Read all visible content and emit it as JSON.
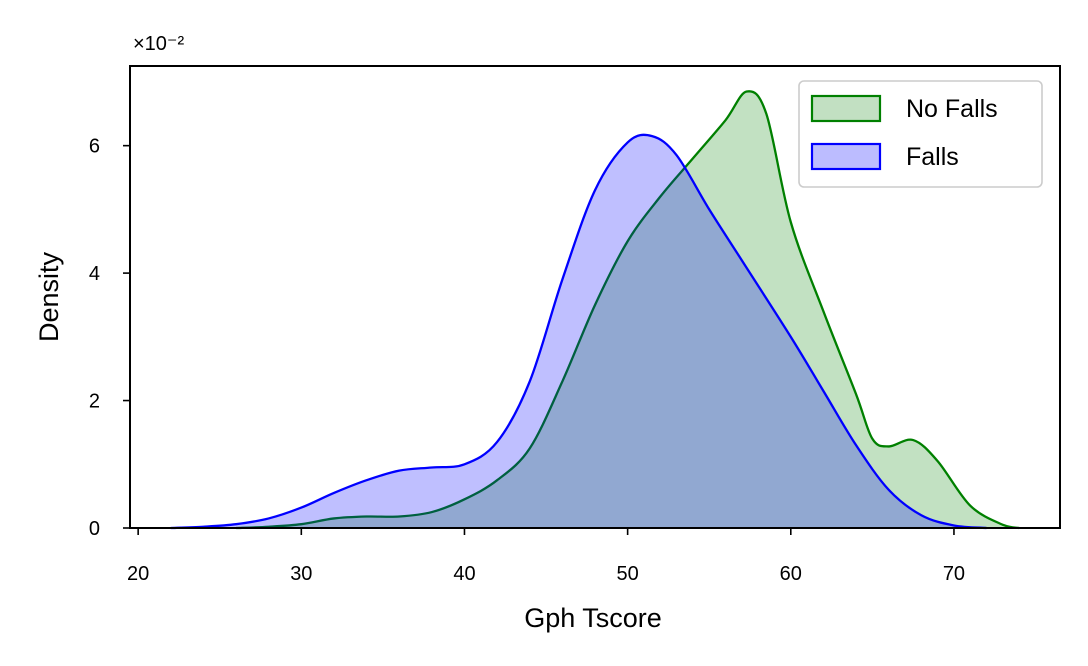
{
  "chart_data": {
    "type": "area",
    "title": "",
    "xlabel": "Gph Tscore",
    "ylabel": "Density",
    "y_offset_label": "×10⁻²",
    "xlim": [
      19.5,
      76.5
    ],
    "ylim": [
      0,
      7.25
    ],
    "xticks": [
      20,
      30,
      40,
      50,
      60,
      70
    ],
    "yticks": [
      0,
      2,
      4,
      6
    ],
    "grid": false,
    "legend_position": "top-right",
    "series": [
      {
        "name": "No Falls",
        "color": "#008000",
        "fill": "#c2e0c2",
        "x": [
          26,
          28,
          30,
          32,
          34,
          36,
          38,
          40,
          42,
          44,
          46,
          48,
          50,
          52,
          54,
          56,
          57.3,
          58.5,
          60,
          62,
          64,
          65,
          66,
          67.5,
          69,
          71,
          73,
          74
        ],
        "y": [
          0,
          0.02,
          0.06,
          0.15,
          0.18,
          0.18,
          0.25,
          0.45,
          0.75,
          1.25,
          2.3,
          3.5,
          4.5,
          5.2,
          5.8,
          6.4,
          6.85,
          6.5,
          4.8,
          3.4,
          2.1,
          1.4,
          1.28,
          1.38,
          1.05,
          0.35,
          0.05,
          0
        ]
      },
      {
        "name": "Falls",
        "color": "#0000ff",
        "fill": "#bcbcff",
        "x": [
          22,
          24,
          26,
          28,
          30,
          32,
          34,
          36,
          38,
          40,
          42,
          44,
          46,
          48,
          50,
          51.5,
          53,
          55,
          57,
          60,
          62,
          64,
          66,
          68,
          70,
          72
        ],
        "y": [
          0,
          0.02,
          0.06,
          0.15,
          0.32,
          0.55,
          0.75,
          0.9,
          0.95,
          1.0,
          1.35,
          2.3,
          3.9,
          5.3,
          6.05,
          6.15,
          5.85,
          5.0,
          4.2,
          3.0,
          2.15,
          1.3,
          0.6,
          0.2,
          0.04,
          0
        ]
      }
    ]
  }
}
